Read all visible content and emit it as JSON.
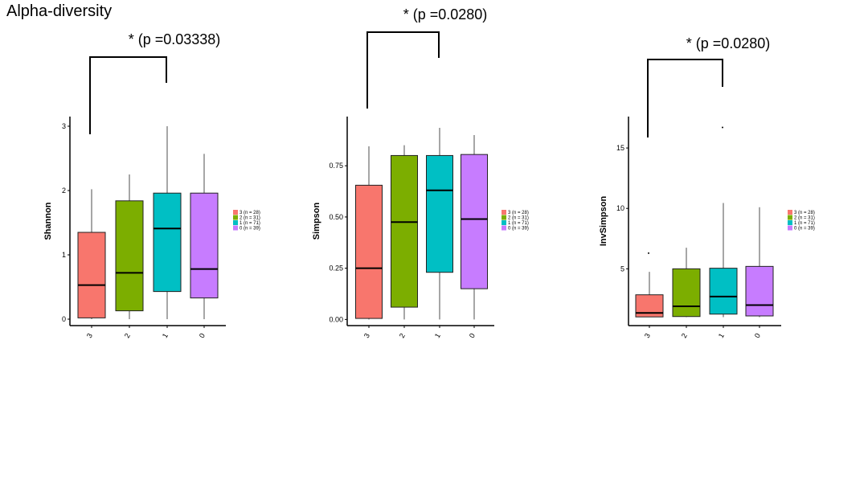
{
  "title": "Alpha-diversity",
  "colors": {
    "3": "#F8766D",
    "2": "#7CAE00",
    "1": "#00BFC4",
    "0": "#C77CFF"
  },
  "chart_data": [
    {
      "type": "boxplot",
      "ylabel": "Shannon",
      "categories": [
        "3",
        "2",
        "1",
        "0"
      ],
      "ylim": [
        -0.1,
        3.15
      ],
      "yticks": [
        0,
        1,
        2,
        3
      ],
      "ytick_labels": [
        "0",
        "1",
        "2",
        "3"
      ],
      "boxes": [
        {
          "group": "3",
          "min": 0.0,
          "q1": 0.02,
          "median": 0.53,
          "q3": 1.35,
          "max": 2.02
        },
        {
          "group": "2",
          "min": 0.0,
          "q1": 0.13,
          "median": 0.72,
          "q3": 1.84,
          "max": 2.25
        },
        {
          "group": "1",
          "min": 0.0,
          "q1": 0.43,
          "median": 1.41,
          "q3": 1.96,
          "max": 3.0
        },
        {
          "group": "0",
          "min": 0.0,
          "q1": 0.33,
          "median": 0.78,
          "q3": 1.96,
          "max": 2.57
        }
      ],
      "outliers": [],
      "significance": {
        "label": "* (p =0.03338)",
        "from": "3",
        "to": "1"
      },
      "legend": [
        "3 (n = 28)",
        "2 (n = 31)",
        "1 (n = 71)",
        "0 (n = 39)"
      ]
    },
    {
      "type": "boxplot",
      "ylabel": "Simpson",
      "categories": [
        "3",
        "2",
        "1",
        "0"
      ],
      "ylim": [
        -0.03,
        0.99
      ],
      "yticks": [
        0.0,
        0.25,
        0.5,
        0.75
      ],
      "ytick_labels": [
        "0.00",
        "0.25",
        "0.50",
        "0.75"
      ],
      "boxes": [
        {
          "group": "3",
          "min": 0.0,
          "q1": 0.005,
          "median": 0.25,
          "q3": 0.655,
          "max": 0.845
        },
        {
          "group": "2",
          "min": 0.0,
          "q1": 0.06,
          "median": 0.475,
          "q3": 0.8,
          "max": 0.85
        },
        {
          "group": "1",
          "min": 0.0,
          "q1": 0.23,
          "median": 0.63,
          "q3": 0.8,
          "max": 0.935
        },
        {
          "group": "0",
          "min": 0.0,
          "q1": 0.15,
          "median": 0.49,
          "q3": 0.805,
          "max": 0.9
        }
      ],
      "outliers": [],
      "significance": {
        "label": "* (p =0.0280)",
        "from": "3",
        "to": "1"
      },
      "legend": [
        "3 (n = 28)",
        "2 (n = 31)",
        "1 (n = 71)",
        "0 (n = 39)"
      ]
    },
    {
      "type": "boxplot",
      "ylabel": "InvSimpson",
      "categories": [
        "3",
        "2",
        "1",
        "0"
      ],
      "ylim": [
        0.3,
        17.6
      ],
      "yticks": [
        5,
        10,
        15
      ],
      "ytick_labels": [
        "5",
        "10",
        "15"
      ],
      "boxes": [
        {
          "group": "3",
          "min": 1.0,
          "q1": 1.02,
          "median": 1.35,
          "q3": 2.85,
          "max": 4.75
        },
        {
          "group": "2",
          "min": 1.0,
          "q1": 1.05,
          "median": 1.9,
          "q3": 5.0,
          "max": 6.75
        },
        {
          "group": "1",
          "min": 1.0,
          "q1": 1.25,
          "median": 2.7,
          "q3": 5.05,
          "max": 10.45
        },
        {
          "group": "0",
          "min": 1.0,
          "q1": 1.1,
          "median": 2.0,
          "q3": 5.2,
          "max": 10.1
        }
      ],
      "outliers": [
        {
          "group": "3",
          "value": 6.3
        },
        {
          "group": "1",
          "value": 16.7
        }
      ],
      "significance": {
        "label": "* (p =0.0280)",
        "from": "3",
        "to": "1"
      },
      "legend": [
        "3 (n = 28)",
        "2 (n = 31)",
        "1 (n = 71)",
        "0 (n = 39)"
      ]
    }
  ]
}
